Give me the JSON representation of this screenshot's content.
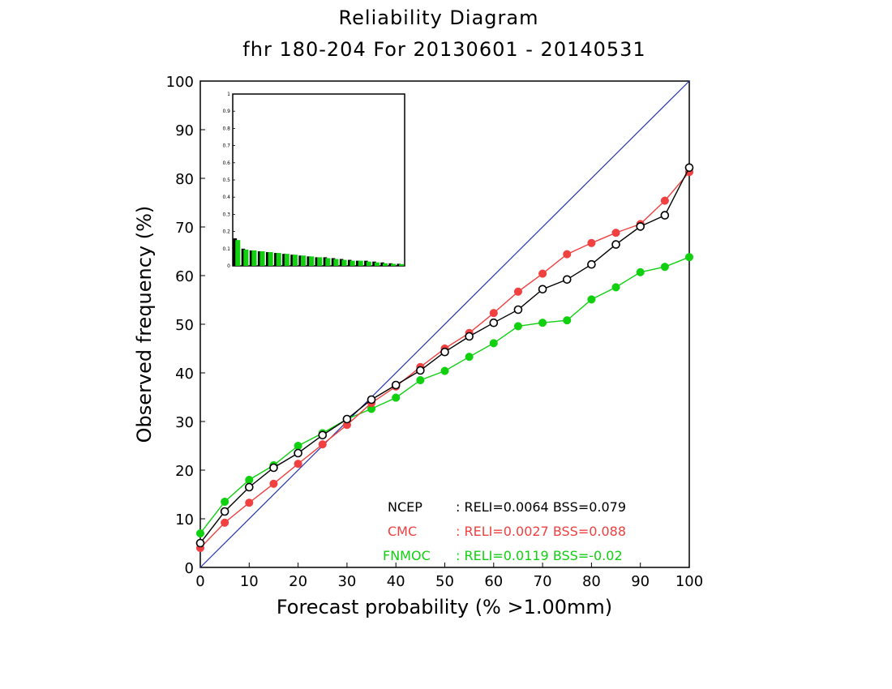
{
  "chart_data": {
    "type": "line",
    "title": "Reliability Diagram",
    "subtitle": "fhr 180-204 For 20130601 - 20140531",
    "xlabel": "Forecast probability (% >1.00mm)",
    "ylabel": "Observed frequency (%)",
    "xlim": [
      0,
      100
    ],
    "ylim": [
      0,
      100
    ],
    "xticks": [
      0,
      10,
      20,
      30,
      40,
      50,
      60,
      70,
      80,
      90,
      100
    ],
    "yticks": [
      0,
      10,
      20,
      30,
      40,
      50,
      60,
      70,
      80,
      90,
      100
    ],
    "grid": false,
    "diagonal": {
      "from": [
        0,
        0
      ],
      "to": [
        100,
        100
      ],
      "color": "#2030b0"
    },
    "x": [
      0,
      5,
      10,
      15,
      20,
      25,
      30,
      35,
      40,
      45,
      50,
      55,
      60,
      65,
      70,
      75,
      80,
      85,
      90,
      95,
      100
    ],
    "series": [
      {
        "name": "NCEP",
        "color": "#000000",
        "marker": "open-circle",
        "values": [
          5,
          11.5,
          16.5,
          20.5,
          23.5,
          27.2,
          30.5,
          34.5,
          37.5,
          40.5,
          44.3,
          47.5,
          50.3,
          53,
          57.2,
          59.2,
          62.3,
          66.4,
          70.1,
          72.4,
          82.2
        ]
      },
      {
        "name": "CMC",
        "color": "#f04040",
        "marker": "filled-circle",
        "values": [
          4,
          9.2,
          13.3,
          17.2,
          21.3,
          25.3,
          29.3,
          33.8,
          37.2,
          41.2,
          45,
          48.2,
          52.3,
          56.7,
          60.4,
          64.4,
          66.7,
          68.8,
          70.6,
          75.4,
          81.3
        ]
      },
      {
        "name": "FNMOC",
        "color": "#10d010",
        "marker": "filled-circle",
        "values": [
          7,
          13.5,
          18,
          21,
          25,
          27.6,
          30.5,
          32.6,
          34.9,
          38.5,
          40.4,
          43.3,
          46.1,
          49.6,
          50.3,
          50.8,
          55.1,
          57.6,
          60.7,
          61.8,
          63.8
        ]
      }
    ],
    "legend": {
      "placement": "bottom-right",
      "entries": [
        {
          "name": "NCEP",
          "stats": ": RELI=0.0064  BSS=0.079",
          "color": "#000000"
        },
        {
          "name": "CMC",
          "stats": ": RELI=0.0027  BSS=0.088",
          "color": "#f04040"
        },
        {
          "name": "FNMOC",
          "stats": ": RELI=0.0119  BSS=-0.02",
          "color": "#10d010"
        }
      ]
    },
    "inset": {
      "type": "bar",
      "placement": "top-left",
      "ylim": [
        0,
        1
      ],
      "yticks": [
        "0",
        "0.1",
        "0.2",
        "0.3",
        "0.4",
        "0.5",
        "0.6",
        "0.7",
        "0.8",
        "0.9",
        "1"
      ],
      "series": [
        {
          "name": "NCEP",
          "color": "#000000",
          "values": [
            0.16,
            0.1,
            0.09,
            0.085,
            0.08,
            0.075,
            0.07,
            0.065,
            0.06,
            0.055,
            0.05,
            0.05,
            0.045,
            0.04,
            0.035,
            0.03,
            0.03,
            0.025,
            0.02,
            0.015,
            0.012
          ]
        },
        {
          "name": "FNMOC",
          "color": "#10d010",
          "values": [
            0.15,
            0.095,
            0.09,
            0.085,
            0.08,
            0.075,
            0.07,
            0.065,
            0.06,
            0.055,
            0.05,
            0.045,
            0.04,
            0.035,
            0.03,
            0.03,
            0.025,
            0.02,
            0.015,
            0.012,
            0.01
          ]
        }
      ]
    }
  }
}
